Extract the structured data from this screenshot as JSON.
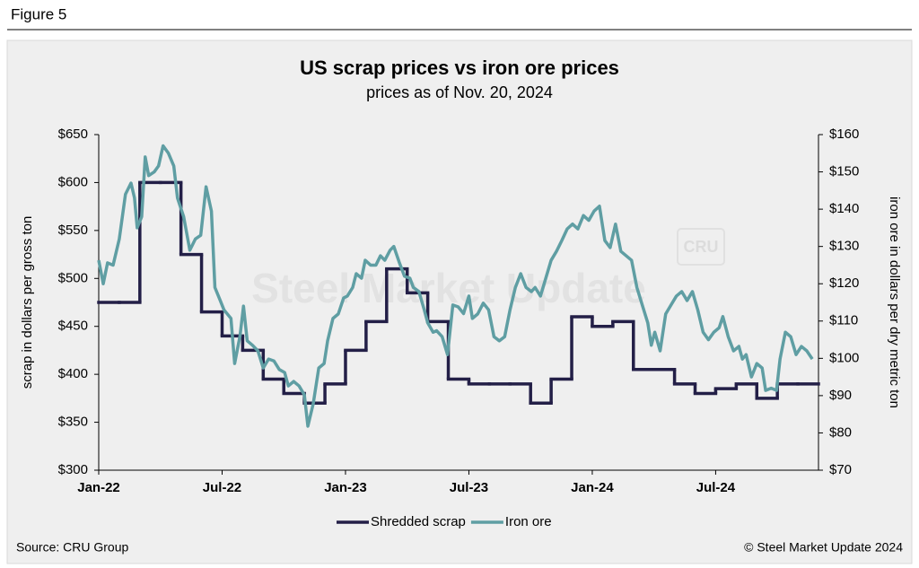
{
  "figure_label": "Figure 5",
  "chart_data": {
    "type": "line",
    "title": "US scrap prices vs iron ore prices",
    "subtitle": "prices as of Nov. 20, 2024",
    "y_label": "scrap in dollars per gross ton",
    "y2_label": "iron ore in dollars per dry metric ton",
    "watermark": "Steel Market Update",
    "watermark_logo": "CRU",
    "legend": "bottom",
    "xlim": [
      0,
      35
    ],
    "xticks": [
      {
        "value": 0,
        "label": "Jan-22"
      },
      {
        "value": 6,
        "label": "Jul-22"
      },
      {
        "value": 12,
        "label": "Jan-23"
      },
      {
        "value": 18,
        "label": "Jul-23"
      },
      {
        "value": 24,
        "label": "Jan-24"
      },
      {
        "value": 30,
        "label": "Jul-24"
      }
    ],
    "ylim": [
      300,
      650
    ],
    "yticks": [
      {
        "value": 300,
        "label": "$300"
      },
      {
        "value": 350,
        "label": "$350"
      },
      {
        "value": 400,
        "label": "$400"
      },
      {
        "value": 450,
        "label": "$450"
      },
      {
        "value": 500,
        "label": "$500"
      },
      {
        "value": 550,
        "label": "$550"
      },
      {
        "value": 600,
        "label": "$600"
      },
      {
        "value": 650,
        "label": "$650"
      }
    ],
    "y2lim": [
      70,
      160
    ],
    "y2ticks": [
      {
        "value": 70,
        "label": "$70"
      },
      {
        "value": 80,
        "label": "$80"
      },
      {
        "value": 90,
        "label": "$90"
      },
      {
        "value": 100,
        "label": "$100"
      },
      {
        "value": 110,
        "label": "$110"
      },
      {
        "value": 120,
        "label": "$120"
      },
      {
        "value": 130,
        "label": "$130"
      },
      {
        "value": 140,
        "label": "$140"
      },
      {
        "value": 150,
        "label": "$150"
      },
      {
        "value": 160,
        "label": "$160"
      }
    ],
    "series": [
      {
        "name": "Shredded scrap",
        "color": "#231f47",
        "step": "post",
        "x": [
          0,
          1,
          2,
          3,
          4,
          5,
          6,
          7,
          8,
          9,
          10,
          11,
          12,
          13,
          14,
          15,
          16,
          17,
          18,
          19,
          20,
          21,
          22,
          23,
          24,
          25,
          26,
          27,
          28,
          29,
          30,
          31,
          32,
          33,
          34
        ],
        "values": [
          475,
          475,
          600,
          600,
          525,
          465,
          440,
          425,
          395,
          380,
          370,
          390,
          425,
          455,
          510,
          485,
          455,
          395,
          390,
          390,
          390,
          370,
          395,
          460,
          450,
          455,
          405,
          405,
          390,
          380,
          385,
          390,
          375,
          390,
          390
        ]
      },
      {
        "name": "Iron ore",
        "color": "#5f9ea3",
        "axis": "y2",
        "x": [
          0,
          0.22,
          0.43,
          0.7,
          1,
          1.3,
          1.57,
          1.74,
          1.87,
          2.09,
          2.26,
          2.43,
          2.7,
          2.91,
          3.13,
          3.39,
          3.65,
          3.83,
          4.13,
          4.43,
          4.7,
          4.96,
          5.22,
          5.48,
          5.65,
          5.91,
          6.09,
          6.43,
          6.61,
          6.87,
          7.04,
          7.22,
          7.48,
          7.74,
          8,
          8.26,
          8.52,
          8.78,
          9.04,
          9.22,
          9.48,
          9.74,
          10,
          10.17,
          10.43,
          10.7,
          10.96,
          11.13,
          11.39,
          11.65,
          11.91,
          12.09,
          12.35,
          12.52,
          12.78,
          12.96,
          13.22,
          13.48,
          13.7,
          13.91,
          14.17,
          14.35,
          14.61,
          14.87,
          15.13,
          15.3,
          15.57,
          15.83,
          16,
          16.26,
          16.43,
          16.7,
          16.96,
          17.22,
          17.48,
          17.74,
          18,
          18.17,
          18.43,
          18.7,
          18.96,
          19.22,
          19.48,
          19.74,
          20,
          20.26,
          20.52,
          20.78,
          21.04,
          21.22,
          21.48,
          21.74,
          22,
          22.26,
          22.52,
          22.78,
          23.04,
          23.3,
          23.57,
          23.83,
          24.09,
          24.35,
          24.61,
          24.87,
          25.13,
          25.39,
          25.65,
          25.91,
          26.17,
          26.43,
          26.7,
          26.87,
          27.04,
          27.3,
          27.57,
          27.83,
          28.09,
          28.35,
          28.61,
          28.87,
          29.13,
          29.39,
          29.65,
          29.91,
          30.17,
          30.35,
          30.61,
          30.87,
          31.13,
          31.3,
          31.48,
          31.74,
          32,
          32.26,
          32.43,
          32.7,
          32.96,
          33.13,
          33.39,
          33.65,
          33.91,
          34.17,
          34.43,
          34.7
        ],
        "values": [
          126.3,
          120,
          125.6,
          125,
          132,
          144,
          147,
          143,
          135,
          138,
          154,
          149,
          150,
          151.6,
          157,
          155,
          151.6,
          143,
          138,
          129,
          132,
          133,
          146,
          139.5,
          119,
          115.5,
          113,
          110.7,
          98.6,
          106,
          114,
          104.7,
          103.5,
          102,
          97.4,
          99.8,
          99.3,
          97,
          96.2,
          92.6,
          93.8,
          92.6,
          90.2,
          81.8,
          87.8,
          97.4,
          98.6,
          104.7,
          110.7,
          111.9,
          116.2,
          116.7,
          119,
          122.7,
          121.5,
          126.3,
          125,
          125,
          127.5,
          126.3,
          129,
          130,
          125.8,
          122,
          121.5,
          119,
          117.9,
          113,
          109.5,
          107,
          107.4,
          105.8,
          101,
          114.3,
          113.8,
          112,
          116.7,
          110.7,
          111.9,
          114.8,
          113,
          105.8,
          104.7,
          105.8,
          113,
          119,
          122.7,
          119,
          117.9,
          119,
          116.7,
          121.5,
          126.3,
          128.7,
          131.6,
          134.7,
          136,
          134.7,
          138.3,
          137,
          139.5,
          140.8,
          131.6,
          129.7,
          136,
          128.7,
          127.5,
          126.3,
          119,
          114.3,
          109.5,
          103.5,
          107,
          102,
          111.9,
          114.3,
          116.7,
          117.9,
          115.5,
          117.9,
          113,
          107,
          105,
          107,
          108.2,
          111.2,
          105.8,
          102,
          103.2,
          99.8,
          101,
          95,
          98.6,
          97.4,
          91.4,
          92,
          91.4,
          99.8,
          107,
          105.8,
          101,
          103.2,
          102,
          99.8
        ]
      }
    ]
  },
  "footer": {
    "source": "Source: CRU Group",
    "copyright": "© Steel Market Update 2024"
  }
}
